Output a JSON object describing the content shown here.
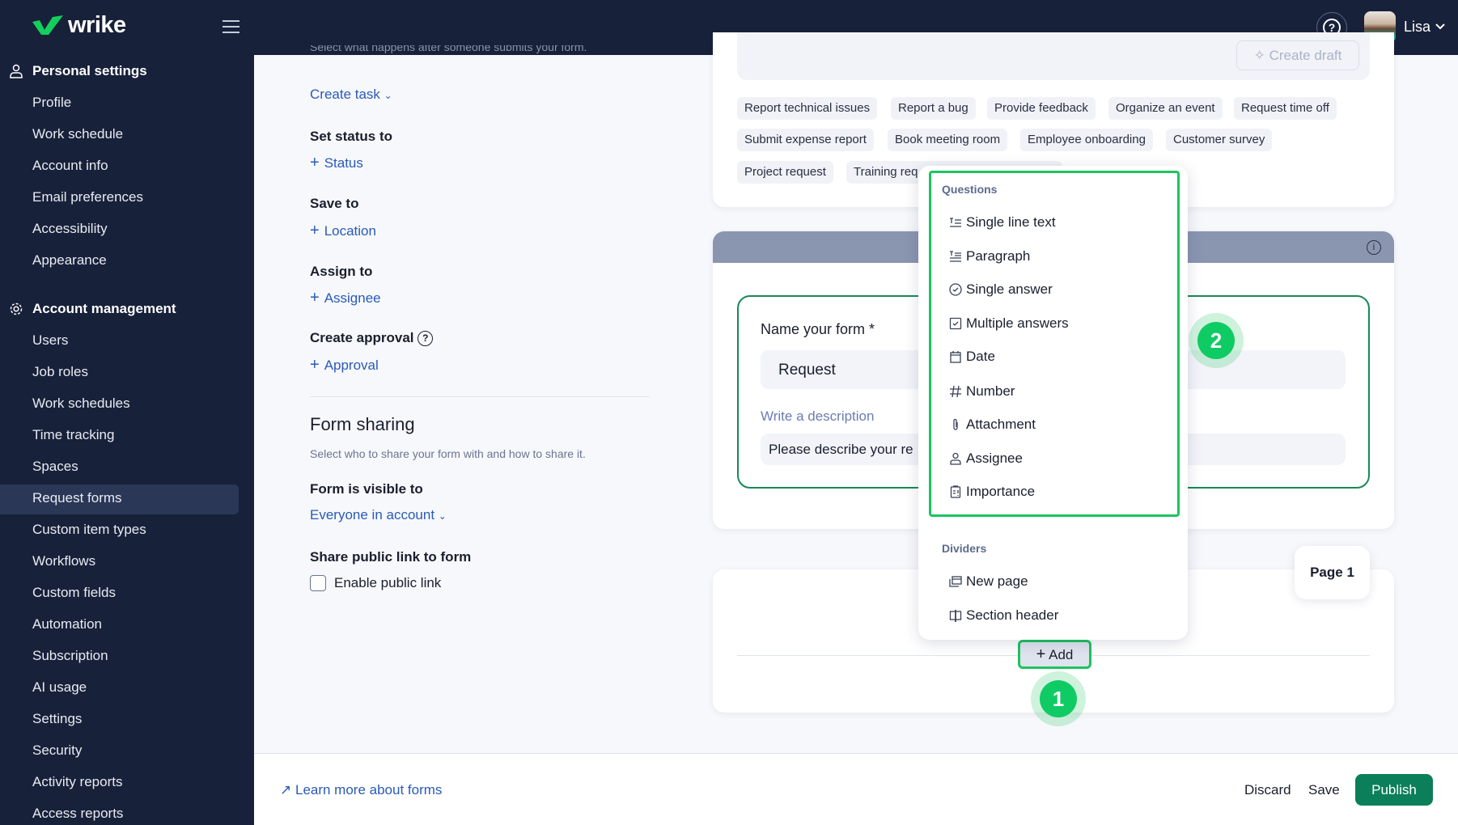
{
  "header": {
    "brand": "wrike",
    "user_name": "Lisa",
    "icons": [
      "menu-icon",
      "help-icon",
      "avatar",
      "chevron-down-icon"
    ]
  },
  "sidebar": {
    "personal_title": "Personal settings",
    "personal_items": [
      "Profile",
      "Work schedule",
      "Account info",
      "Email preferences",
      "Accessibility",
      "Appearance"
    ],
    "account_title": "Account management",
    "account_items": [
      "Users",
      "Job roles",
      "Work schedules",
      "Time tracking",
      "Spaces",
      "Request forms",
      "Custom item types",
      "Workflows",
      "Custom fields",
      "Automation",
      "Subscription",
      "AI usage",
      "Settings",
      "Security",
      "Activity reports",
      "Access reports"
    ],
    "active": "Request forms"
  },
  "left_panel": {
    "truncated_subtitle": "Select what happens after someone submits your form.",
    "action_select": "Create task",
    "status_label": "Set status to",
    "status_link": "Status",
    "save_label": "Save to",
    "save_link": "Location",
    "assign_label": "Assign to",
    "assign_link": "Assignee",
    "approval_label": "Create approval",
    "approval_link": "Approval",
    "sharing_title": "Form sharing",
    "sharing_subtitle": "Select who to share your form with and how to share it.",
    "visible_label": "Form is visible to",
    "visible_value": "Everyone in account",
    "public_label": "Share public link to form",
    "public_checkbox": "Enable public link",
    "public_checked": false
  },
  "templates": {
    "create_draft": "Create draft",
    "chips": [
      "Report technical issues",
      "Report a bug",
      "Provide feedback",
      "Organize an event",
      "Request time off",
      "Submit expense report",
      "Book meeting room",
      "Employee onboarding",
      "Customer survey",
      "Project request",
      "Training req"
    ]
  },
  "form": {
    "name_label": "Name your form *",
    "name_value": "Request",
    "desc_label": "Write a description",
    "desc_value": "Please describe your re"
  },
  "page_badge": "Page 1",
  "add_button": "Add",
  "dropdown": {
    "questions_title": "Questions",
    "questions": [
      {
        "label": "Single line text",
        "icon": "single-line-text-icon"
      },
      {
        "label": "Paragraph",
        "icon": "paragraph-icon"
      },
      {
        "label": "Single answer",
        "icon": "radio-check-icon"
      },
      {
        "label": "Multiple answers",
        "icon": "checkbox-icon"
      },
      {
        "label": "Date",
        "icon": "calendar-icon"
      },
      {
        "label": "Number",
        "icon": "hash-icon"
      },
      {
        "label": "Attachment",
        "icon": "paperclip-icon"
      },
      {
        "label": "Assignee",
        "icon": "person-icon"
      },
      {
        "label": "Importance",
        "icon": "importance-icon"
      }
    ],
    "dividers_title": "Dividers",
    "dividers": [
      {
        "label": "New page",
        "icon": "new-page-icon"
      },
      {
        "label": "Section header",
        "icon": "section-header-icon"
      }
    ]
  },
  "steps": {
    "one": "1",
    "two": "2"
  },
  "footer": {
    "learn_more": "Learn more about forms",
    "discard": "Discard",
    "save": "Save",
    "publish": "Publish"
  },
  "colors": {
    "nav_bg": "#18213a",
    "accent_link": "#2a5ab8",
    "highlight_green": "#1ec35f",
    "publish": "#0a7f5a",
    "card_header": "#8a96b0"
  }
}
